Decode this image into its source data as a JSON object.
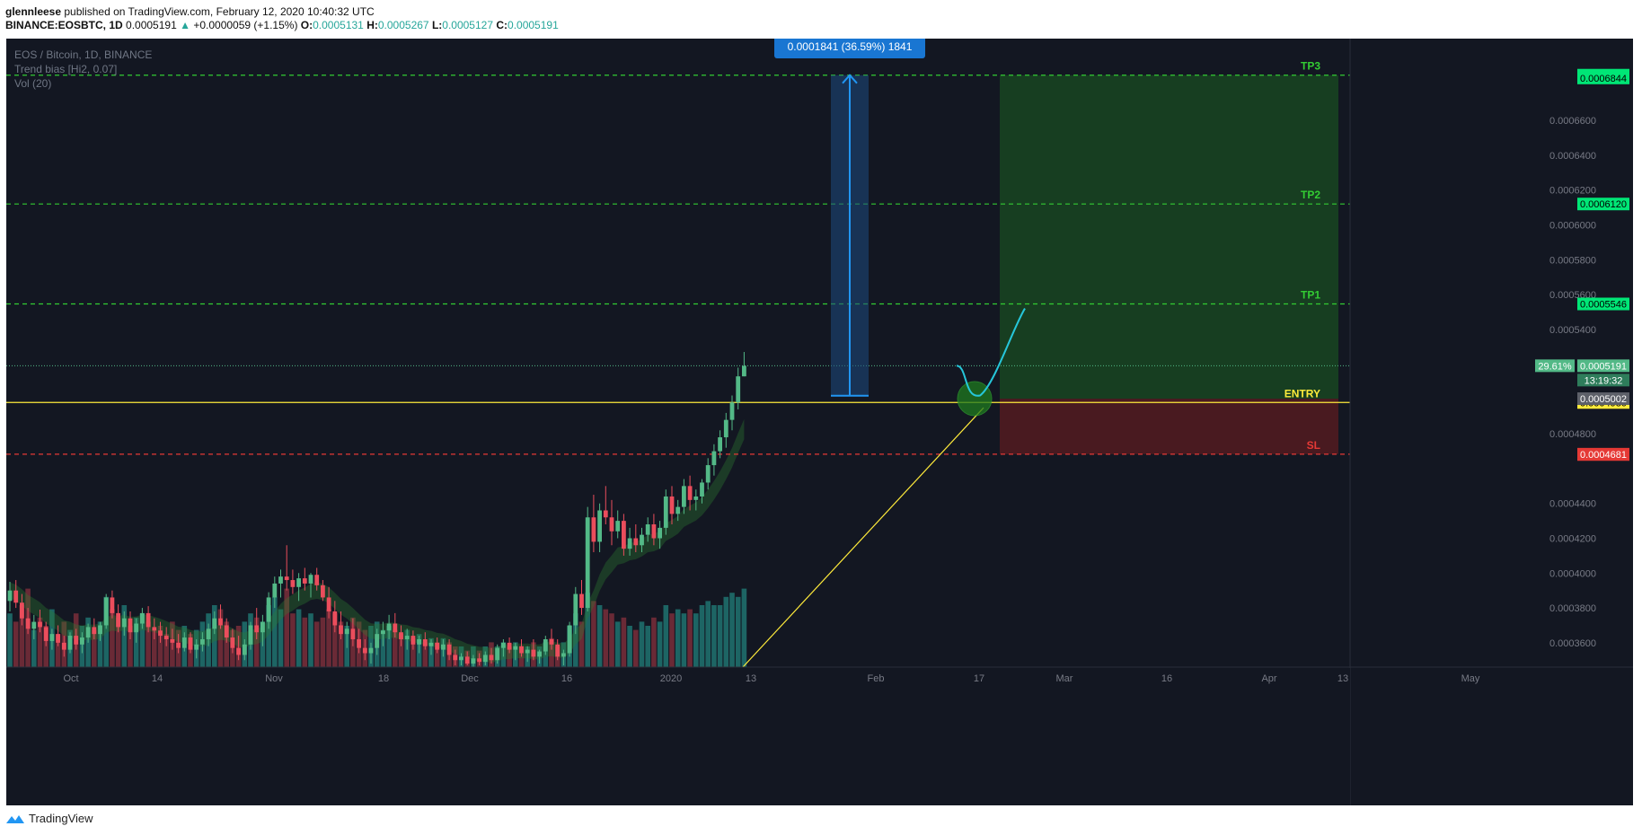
{
  "header": {
    "author": "glennleese",
    "published_text": "published on TradingView.com, February 12, 2020 10:40:32 UTC",
    "symbol": "BINANCE:EOSBTC, 1D",
    "price": "0.0005191",
    "change": "+0.0000059 (+1.15%)",
    "o_label": "O:",
    "o": "0.0005131",
    "h_label": "H:",
    "h": "0.0005267",
    "l_label": "L:",
    "l": "0.0005127",
    "c_label": "C:",
    "c": "0.0005191"
  },
  "legend": {
    "title": "EOS / Bitcoin, 1D, BINANCE",
    "indicator1": "Trend bias [Hi2, 0.07]",
    "indicator2": "Vol (20)"
  },
  "footer": {
    "brand": "TradingView"
  },
  "colors": {
    "bg": "#131722",
    "up": "#53b987",
    "down": "#eb4d5c",
    "tp": "#33cc33",
    "entry": "#ffeb3b",
    "sl": "#e53935",
    "measure": "#2196f3"
  },
  "chart_data": {
    "type": "candlestick",
    "symbol": "EOS / Bitcoin",
    "timeframe": "1D",
    "exchange": "BINANCE",
    "ylim": [
      0.000346,
      0.000707
    ],
    "y_ticks": [
      "0.0006600",
      "0.0006400",
      "0.0006200",
      "0.0006000",
      "0.0005800",
      "0.0005600",
      "0.0005400",
      "0.0004800",
      "0.0004400",
      "0.0004200",
      "0.0004000",
      "0.0003800",
      "0.0003600"
    ],
    "x_labels": [
      "Oct",
      "14",
      "Nov",
      "18",
      "Dec",
      "16",
      "2020",
      "13",
      "Feb",
      "17",
      "Mar",
      "16",
      "Apr",
      "13",
      "May"
    ],
    "levels": [
      {
        "label": "TP3",
        "value": 0.000686,
        "tag": "0.0006860"
      },
      {
        "label": "TP2",
        "value": 0.000612,
        "tag": "0.0006120"
      },
      {
        "label": "TP1",
        "value": 0.0005546,
        "tag": "0.0005546"
      },
      {
        "label": "ENTRY",
        "value": 0.000498,
        "tag": "0.0004980"
      },
      {
        "label": "SL",
        "value": 0.0004683,
        "tag": "0.0004683"
      }
    ],
    "price_tags": [
      {
        "text": "0.0006844",
        "value": 0.0006844,
        "kind": "tp"
      },
      {
        "text": "0.0005191",
        "value": 0.0005191,
        "kind": "last"
      },
      {
        "text": "0.0005002",
        "value": 0.0005002,
        "kind": "grey"
      },
      {
        "text": "0.0004681",
        "value": 0.0004681,
        "kind": "sl"
      }
    ],
    "last_percent": "29.61%",
    "countdown": "13:19:32",
    "measure_label": "0.0001841 (36.59%) 1841",
    "measure_from": 0.0005019,
    "measure_to": 0.000686,
    "candles": [
      [
        0.000384,
        0.000395,
        0.000378,
        0.00039
      ],
      [
        0.00039,
        0.000396,
        0.00038,
        0.000383
      ],
      [
        0.000383,
        0.000388,
        0.00037,
        0.000374
      ],
      [
        0.000374,
        0.00038,
        0.000365,
        0.000368
      ],
      [
        0.000368,
        0.000376,
        0.000362,
        0.000372
      ],
      [
        0.000372,
        0.000379,
        0.000366,
        0.000369
      ],
      [
        0.000369,
        0.000372,
        0.000358,
        0.000361
      ],
      [
        0.000361,
        0.000368,
        0.000356,
        0.000365
      ],
      [
        0.000365,
        0.00037,
        0.000358,
        0.00036
      ],
      [
        0.00036,
        0.000364,
        0.000352,
        0.000356
      ],
      [
        0.000356,
        0.000366,
        0.000354,
        0.000364
      ],
      [
        0.000364,
        0.000368,
        0.000356,
        0.000359
      ],
      [
        0.000359,
        0.000366,
        0.000354,
        0.000363
      ],
      [
        0.000363,
        0.000371,
        0.00036,
        0.000369
      ],
      [
        0.000369,
        0.000374,
        0.000362,
        0.000365
      ],
      [
        0.000365,
        0.000372,
        0.000361,
        0.00037
      ],
      [
        0.00037,
        0.000388,
        0.000368,
        0.000386
      ],
      [
        0.000386,
        0.00039,
        0.000374,
        0.000377
      ],
      [
        0.000377,
        0.000382,
        0.000366,
        0.000369
      ],
      [
        0.000369,
        0.000378,
        0.000364,
        0.000374
      ],
      [
        0.000374,
        0.000378,
        0.000362,
        0.000366
      ],
      [
        0.000366,
        0.000374,
        0.00036,
        0.000371
      ],
      [
        0.000371,
        0.00038,
        0.000368,
        0.000377
      ],
      [
        0.000377,
        0.000381,
        0.000366,
        0.000369
      ],
      [
        0.000369,
        0.000374,
        0.000362,
        0.000367
      ],
      [
        0.000367,
        0.000372,
        0.00036,
        0.000364
      ],
      [
        0.000364,
        0.000369,
        0.000358,
        0.000362
      ],
      [
        0.000362,
        0.000368,
        0.000356,
        0.00036
      ],
      [
        0.00036,
        0.000365,
        0.000354,
        0.000357
      ],
      [
        0.000357,
        0.000366,
        0.000355,
        0.000363
      ],
      [
        0.000363,
        0.000366,
        0.000354,
        0.000356
      ],
      [
        0.000356,
        0.000362,
        0.000351,
        0.000359
      ],
      [
        0.000359,
        0.000366,
        0.000355,
        0.000362
      ],
      [
        0.000362,
        0.000371,
        0.000358,
        0.000368
      ],
      [
        0.000368,
        0.000378,
        0.000365,
        0.000374
      ],
      [
        0.000374,
        0.000382,
        0.000368,
        0.00037
      ],
      [
        0.00037,
        0.000374,
        0.00036,
        0.000363
      ],
      [
        0.000363,
        0.000368,
        0.000354,
        0.000357
      ],
      [
        0.000357,
        0.000364,
        0.00035,
        0.000353
      ],
      [
        0.000353,
        0.000362,
        0.00035,
        0.000359
      ],
      [
        0.000359,
        0.000372,
        0.000356,
        0.00037
      ],
      [
        0.00037,
        0.00038,
        0.000362,
        0.000366
      ],
      [
        0.000366,
        0.000376,
        0.000358,
        0.000372
      ],
      [
        0.000372,
        0.000389,
        0.000368,
        0.000386
      ],
      [
        0.000386,
        0.000398,
        0.00038,
        0.000394
      ],
      [
        0.000394,
        0.000402,
        0.000386,
        0.000398
      ],
      [
        0.000398,
        0.000416,
        0.00039,
        0.000396
      ],
      [
        0.000396,
        0.000402,
        0.000388,
        0.000392
      ],
      [
        0.000392,
        0.0004,
        0.000384,
        0.000397
      ],
      [
        0.000397,
        0.000403,
        0.00039,
        0.000394
      ],
      [
        0.000394,
        0.0004,
        0.000386,
        0.000399
      ],
      [
        0.000399,
        0.000403,
        0.00039,
        0.000393
      ],
      [
        0.000393,
        0.000396,
        0.000384,
        0.000386
      ],
      [
        0.000386,
        0.000392,
        0.000374,
        0.000378
      ],
      [
        0.000378,
        0.000384,
        0.000366,
        0.00037
      ],
      [
        0.00037,
        0.000378,
        0.000362,
        0.000365
      ],
      [
        0.000365,
        0.000372,
        0.000357,
        0.000368
      ],
      [
        0.000368,
        0.000374,
        0.000358,
        0.000362
      ],
      [
        0.000362,
        0.000368,
        0.000354,
        0.000357
      ],
      [
        0.000357,
        0.000362,
        0.00035,
        0.000354
      ],
      [
        0.000354,
        0.00036,
        0.000348,
        0.000357
      ],
      [
        0.000357,
        0.000368,
        0.000353,
        0.000365
      ],
      [
        0.000365,
        0.000372,
        0.000358,
        0.000367
      ],
      [
        0.000367,
        0.000376,
        0.000362,
        0.000371
      ],
      [
        0.000371,
        0.000377,
        0.000363,
        0.000366
      ],
      [
        0.000366,
        0.00037,
        0.000358,
        0.000362
      ],
      [
        0.000362,
        0.000368,
        0.000356,
        0.000364
      ],
      [
        0.000364,
        0.000367,
        0.000356,
        0.000359
      ],
      [
        0.000359,
        0.000364,
        0.000354,
        0.000362
      ],
      [
        0.000362,
        0.000366,
        0.000356,
        0.000358
      ],
      [
        0.000358,
        0.000362,
        0.000353,
        0.00036
      ],
      [
        0.00036,
        0.000363,
        0.000354,
        0.000356
      ],
      [
        0.000356,
        0.000362,
        0.000352,
        0.000359
      ],
      [
        0.000359,
        0.000362,
        0.00035,
        0.000353
      ],
      [
        0.000353,
        0.000356,
        0.000347,
        0.00035
      ],
      [
        0.00035,
        0.000354,
        0.000347,
        0.000352
      ],
      [
        0.000352,
        0.000355,
        0.000347,
        0.000348
      ],
      [
        0.000348,
        0.000353,
        0.000346,
        0.000351
      ],
      [
        0.000351,
        0.000354,
        0.000347,
        0.000349
      ],
      [
        0.000349,
        0.000355,
        0.000347,
        0.000353
      ],
      [
        0.000353,
        0.000357,
        0.000348,
        0.00035
      ],
      [
        0.00035,
        0.000359,
        0.000348,
        0.000357
      ],
      [
        0.000357,
        0.000362,
        0.000352,
        0.00036
      ],
      [
        0.00036,
        0.000363,
        0.000354,
        0.000356
      ],
      [
        0.000356,
        0.00036,
        0.00035,
        0.000358
      ],
      [
        0.000358,
        0.000362,
        0.000352,
        0.000354
      ],
      [
        0.000354,
        0.000358,
        0.000349,
        0.000356
      ],
      [
        0.000356,
        0.000362,
        0.00035,
        0.000352
      ],
      [
        0.000352,
        0.000356,
        0.000348,
        0.000355
      ],
      [
        0.000355,
        0.000364,
        0.000353,
        0.000362
      ],
      [
        0.000362,
        0.000368,
        0.000356,
        0.000359
      ],
      [
        0.000359,
        0.000362,
        0.00035,
        0.000352
      ],
      [
        0.000352,
        0.000356,
        0.000347,
        0.000354
      ],
      [
        0.000354,
        0.000372,
        0.000352,
        0.00037
      ],
      [
        0.00037,
        0.000392,
        0.000365,
        0.000388
      ],
      [
        0.000388,
        0.000396,
        0.000376,
        0.00038
      ],
      [
        0.00038,
        0.000438,
        0.000378,
        0.000432
      ],
      [
        0.000432,
        0.000445,
        0.000412,
        0.000418
      ],
      [
        0.000418,
        0.00044,
        0.000412,
        0.000436
      ],
      [
        0.000436,
        0.00045,
        0.000428,
        0.000432
      ],
      [
        0.000432,
        0.000442,
        0.000416,
        0.000424
      ],
      [
        0.000424,
        0.000436,
        0.00042,
        0.00043
      ],
      [
        0.00043,
        0.000434,
        0.00041,
        0.000414
      ],
      [
        0.000414,
        0.000426,
        0.00041,
        0.00042
      ],
      [
        0.00042,
        0.000428,
        0.000412,
        0.000416
      ],
      [
        0.000416,
        0.000426,
        0.000412,
        0.000422
      ],
      [
        0.000422,
        0.000432,
        0.000418,
        0.000428
      ],
      [
        0.000428,
        0.000434,
        0.000416,
        0.00042
      ],
      [
        0.00042,
        0.00043,
        0.000414,
        0.000426
      ],
      [
        0.000426,
        0.000448,
        0.000422,
        0.000444
      ],
      [
        0.000444,
        0.00045,
        0.000428,
        0.000434
      ],
      [
        0.000434,
        0.000442,
        0.00043,
        0.000438
      ],
      [
        0.000438,
        0.000454,
        0.000434,
        0.00045
      ],
      [
        0.00045,
        0.000456,
        0.000436,
        0.000442
      ],
      [
        0.000442,
        0.000448,
        0.000436,
        0.000444
      ],
      [
        0.000444,
        0.000454,
        0.00044,
        0.000452
      ],
      [
        0.000452,
        0.000466,
        0.000448,
        0.000462
      ],
      [
        0.000462,
        0.000474,
        0.000456,
        0.00047
      ],
      [
        0.00047,
        0.000482,
        0.000466,
        0.000478
      ],
      [
        0.000478,
        0.000492,
        0.000472,
        0.000488
      ],
      [
        0.000488,
        0.000502,
        0.000482,
        0.000498
      ],
      [
        0.000498,
        0.000518,
        0.000494,
        0.000513
      ],
      [
        0.000513,
        0.000527,
        0.000513,
        0.000519
      ]
    ],
    "volume": [
      0.26,
      0.22,
      0.3,
      0.38,
      0.18,
      0.24,
      0.2,
      0.28,
      0.16,
      0.22,
      0.18,
      0.26,
      0.2,
      0.24,
      0.18,
      0.22,
      0.34,
      0.28,
      0.24,
      0.3,
      0.2,
      0.24,
      0.26,
      0.22,
      0.18,
      0.2,
      0.16,
      0.22,
      0.18,
      0.2,
      0.16,
      0.18,
      0.22,
      0.26,
      0.3,
      0.28,
      0.22,
      0.18,
      0.2,
      0.22,
      0.26,
      0.24,
      0.22,
      0.3,
      0.34,
      0.28,
      0.38,
      0.26,
      0.28,
      0.24,
      0.26,
      0.22,
      0.24,
      0.28,
      0.26,
      0.22,
      0.2,
      0.24,
      0.22,
      0.18,
      0.2,
      0.22,
      0.18,
      0.2,
      0.18,
      0.16,
      0.18,
      0.14,
      0.16,
      0.12,
      0.14,
      0.12,
      0.14,
      0.12,
      0.1,
      0.1,
      0.08,
      0.1,
      0.08,
      0.1,
      0.12,
      0.1,
      0.12,
      0.1,
      0.12,
      0.1,
      0.1,
      0.12,
      0.1,
      0.12,
      0.14,
      0.1,
      0.12,
      0.2,
      0.26,
      0.22,
      0.36,
      0.32,
      0.3,
      0.28,
      0.26,
      0.22,
      0.24,
      0.2,
      0.18,
      0.22,
      0.2,
      0.24,
      0.22,
      0.3,
      0.26,
      0.28,
      0.26,
      0.28,
      0.26,
      0.3,
      0.32,
      0.3,
      0.3,
      0.34,
      0.36,
      0.34,
      0.38
    ]
  }
}
